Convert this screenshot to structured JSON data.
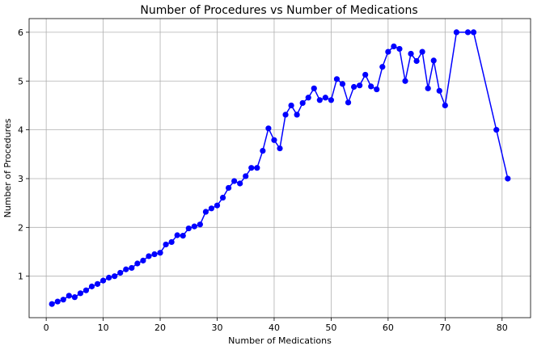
{
  "chart_data": {
    "type": "line",
    "title": "Number of Procedures vs Number of Medications",
    "xlabel": "Number of Medications",
    "ylabel": "Number of Procedures",
    "xlim": [
      -3,
      85
    ],
    "ylim": [
      0.15,
      6.28
    ],
    "xticks": [
      0,
      10,
      20,
      30,
      40,
      50,
      60,
      70,
      80
    ],
    "yticks": [
      1,
      2,
      3,
      4,
      5,
      6
    ],
    "grid": true,
    "legend": "none",
    "series": [
      {
        "color": "#0000ff",
        "marker": "circle",
        "x": [
          1,
          2,
          3,
          4,
          5,
          6,
          7,
          8,
          9,
          10,
          11,
          12,
          13,
          14,
          15,
          16,
          17,
          18,
          19,
          20,
          21,
          22,
          23,
          24,
          25,
          26,
          27,
          28,
          29,
          30,
          31,
          32,
          33,
          34,
          35,
          36,
          37,
          38,
          39,
          40,
          41,
          42,
          43,
          44,
          45,
          46,
          47,
          48,
          49,
          50,
          51,
          52,
          53,
          54,
          55,
          56,
          57,
          58,
          59,
          60,
          61,
          62,
          63,
          64,
          65,
          66,
          67,
          68,
          69,
          70,
          72,
          74,
          75,
          79,
          81
        ],
        "y": [
          0.43,
          0.48,
          0.52,
          0.6,
          0.57,
          0.65,
          0.71,
          0.79,
          0.84,
          0.91,
          0.97,
          1.0,
          1.07,
          1.14,
          1.17,
          1.26,
          1.32,
          1.41,
          1.45,
          1.48,
          1.65,
          1.7,
          1.84,
          1.83,
          1.98,
          2.02,
          2.06,
          2.32,
          2.39,
          2.45,
          2.61,
          2.81,
          2.95,
          2.9,
          3.05,
          3.22,
          3.22,
          3.57,
          4.03,
          3.79,
          3.62,
          4.31,
          4.5,
          4.31,
          4.55,
          4.66,
          4.85,
          4.61,
          4.66,
          4.61,
          5.04,
          4.94,
          4.56,
          4.88,
          4.91,
          5.13,
          4.89,
          4.83,
          5.29,
          5.6,
          5.71,
          5.66,
          5.0,
          5.56,
          5.41,
          5.6,
          4.85,
          5.42,
          4.8,
          4.5,
          6.0,
          6.0,
          6.0,
          4.0,
          3.0
        ]
      }
    ]
  }
}
